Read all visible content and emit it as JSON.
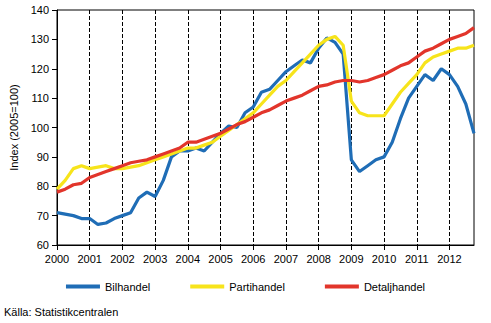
{
  "chart_data": {
    "type": "line",
    "ylabel": "Index (2005=100)",
    "source": "Källa: Statistikcentralen",
    "x": [
      2000,
      2000.25,
      2000.5,
      2000.75,
      2001,
      2001.25,
      2001.5,
      2001.75,
      2002,
      2002.25,
      2002.5,
      2002.75,
      2003,
      2003.25,
      2003.5,
      2003.75,
      2004,
      2004.25,
      2004.5,
      2004.75,
      2005,
      2005.25,
      2005.5,
      2005.75,
      2006,
      2006.25,
      2006.5,
      2006.75,
      2007,
      2007.25,
      2007.5,
      2007.75,
      2008,
      2008.25,
      2008.5,
      2008.75,
      2009,
      2009.25,
      2009.5,
      2009.75,
      2010,
      2010.25,
      2010.5,
      2010.75,
      2011,
      2011.25,
      2011.5,
      2011.75,
      2012,
      2012.25,
      2012.5,
      2012.75
    ],
    "series": [
      {
        "name": "Bilhandel",
        "color": "#1f6db6",
        "values": [
          71,
          70.5,
          70,
          69,
          69,
          67,
          67.5,
          69,
          70,
          71,
          76,
          78,
          76.5,
          82,
          90,
          92,
          92,
          93,
          92,
          95,
          98,
          100.5,
          100,
          105,
          107,
          112,
          113,
          116,
          119,
          121,
          123,
          122,
          127,
          130.5,
          129,
          125,
          89,
          85,
          87,
          89,
          90,
          95,
          103,
          110,
          114,
          118,
          116,
          120,
          118,
          114,
          108,
          98
        ]
      },
      {
        "name": "Partihandel",
        "color": "#f7e41b",
        "values": [
          79,
          82,
          86,
          87,
          86,
          86.5,
          87,
          86,
          86,
          86.5,
          87,
          88,
          89,
          90,
          91,
          92,
          93,
          93,
          94,
          95,
          97,
          99,
          101,
          103,
          105,
          108,
          111,
          114,
          116,
          119,
          122,
          125,
          128,
          130,
          131,
          128,
          109,
          105,
          104,
          104,
          104,
          108,
          112,
          115,
          118,
          122,
          124,
          125,
          126,
          127,
          127,
          128
        ]
      },
      {
        "name": "Detaljhandel",
        "color": "#e2352b",
        "values": [
          78,
          79,
          80.5,
          81,
          83,
          84,
          85,
          86,
          87,
          88,
          88.5,
          89,
          90,
          91,
          92,
          93,
          95,
          95,
          96,
          97,
          98,
          99.5,
          101,
          102,
          103.5,
          105,
          106,
          107.5,
          109,
          110,
          111,
          112.5,
          114,
          114.5,
          115.5,
          116,
          116,
          115.5,
          116,
          117,
          118,
          119.5,
          121,
          122,
          124,
          126,
          127,
          128.5,
          130,
          131,
          132,
          134
        ]
      }
    ],
    "xlim": [
      2000,
      2012.75
    ],
    "xticks": [
      2000,
      2001,
      2002,
      2003,
      2004,
      2005,
      2006,
      2007,
      2008,
      2009,
      2010,
      2011,
      2012
    ],
    "ylim": [
      60,
      140
    ],
    "yticks": [
      60,
      70,
      80,
      90,
      100,
      110,
      120,
      130,
      140
    ],
    "grid": true,
    "legend": "bottom"
  }
}
